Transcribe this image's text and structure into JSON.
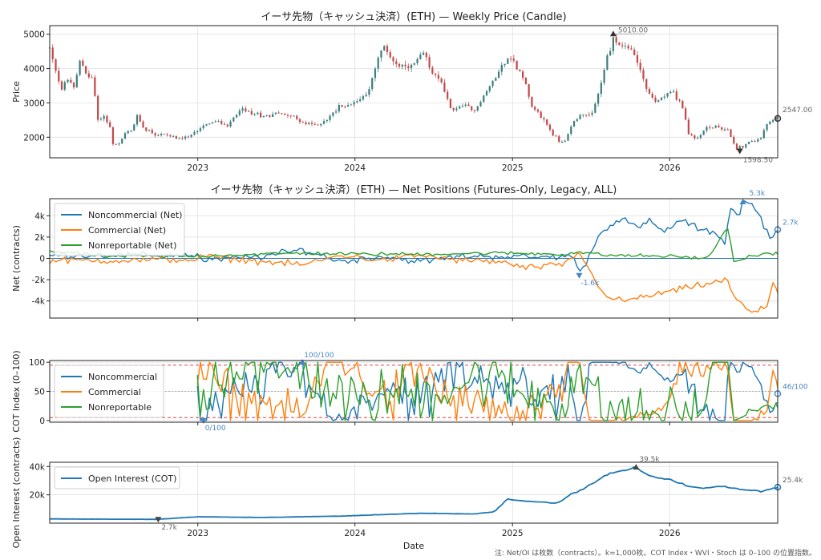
{
  "footnote": "注: Net/OI は枚数（contracts）。k=1,000枚。COT Index・WVI・Stoch は 0–100 の位置指数。",
  "colors": {
    "noncommercial": "#1f77b4",
    "commercial": "#ff7f0e",
    "nonreportable": "#2ca02c",
    "oi": "#1f77b4",
    "up": "#3f7f7f",
    "down": "#c24a4a",
    "threshold": "#d62728",
    "ann_blue": "#4a86c5",
    "ann_gray": "#666666"
  },
  "chart_data": [
    {
      "id": "price",
      "type": "candlestick",
      "title": "イーサ先物（キャッシュ決済）(ETH) — Weekly Price (Candle)",
      "ylabel": "Price",
      "ylim": [
        1400,
        5250
      ],
      "yticks": [
        2000,
        3000,
        4000,
        5000
      ],
      "xlim": [
        "2022-01-22",
        "2026-09-09"
      ],
      "xticks": [
        "2023",
        "2024",
        "2025",
        "2026"
      ],
      "grid": true,
      "anchors_close": [
        [
          "2022-01-22",
          4600
        ],
        [
          "2022-02-05",
          3900
        ],
        [
          "2022-02-19",
          3400
        ],
        [
          "2022-03-05",
          3700
        ],
        [
          "2022-03-19",
          3400
        ],
        [
          "2022-04-02",
          4200
        ],
        [
          "2022-04-16",
          3900
        ],
        [
          "2022-04-30",
          3700
        ],
        [
          "2022-05-07",
          3200
        ],
        [
          "2022-05-14",
          2500
        ],
        [
          "2022-05-28",
          2600
        ],
        [
          "2022-06-11",
          2300
        ],
        [
          "2022-06-18",
          1800
        ],
        [
          "2022-07-02",
          1800
        ],
        [
          "2022-07-16",
          2100
        ],
        [
          "2022-07-30",
          2200
        ],
        [
          "2022-08-13",
          2600
        ],
        [
          "2022-08-27",
          2300
        ],
        [
          "2022-09-10",
          2200
        ],
        [
          "2022-09-24",
          2050
        ],
        [
          "2022-10-15",
          2100
        ],
        [
          "2022-11-05",
          2000
        ],
        [
          "2022-11-19",
          1950
        ],
        [
          "2022-12-10",
          2000
        ],
        [
          "2022-12-31",
          2200
        ],
        [
          "2023-01-21",
          2400
        ],
        [
          "2023-02-18",
          2450
        ],
        [
          "2023-03-11",
          2300
        ],
        [
          "2023-04-08",
          2800
        ],
        [
          "2023-05-06",
          2700
        ],
        [
          "2023-06-03",
          2600
        ],
        [
          "2023-07-01",
          2700
        ],
        [
          "2023-08-05",
          2650
        ],
        [
          "2023-09-02",
          2400
        ],
        [
          "2023-10-07",
          2350
        ],
        [
          "2023-11-04",
          2600
        ],
        [
          "2023-11-25",
          2900
        ],
        [
          "2023-12-16",
          2950
        ],
        [
          "2024-01-13",
          3100
        ],
        [
          "2024-02-03",
          3400
        ],
        [
          "2024-02-24",
          4300
        ],
        [
          "2024-03-09",
          4600
        ],
        [
          "2024-03-30",
          4250
        ],
        [
          "2024-04-20",
          4000
        ],
        [
          "2024-05-18",
          4100
        ],
        [
          "2024-06-08",
          4400
        ],
        [
          "2024-06-29",
          3900
        ],
        [
          "2024-07-20",
          3600
        ],
        [
          "2024-08-10",
          2800
        ],
        [
          "2024-09-07",
          2900
        ],
        [
          "2024-10-05",
          2800
        ],
        [
          "2024-10-26",
          3200
        ],
        [
          "2024-11-16",
          3600
        ],
        [
          "2024-12-07",
          4100
        ],
        [
          "2024-12-28",
          4300
        ],
        [
          "2025-01-25",
          3800
        ],
        [
          "2025-02-15",
          2900
        ],
        [
          "2025-03-15",
          2500
        ],
        [
          "2025-04-05",
          2100
        ],
        [
          "2025-04-19",
          1850
        ],
        [
          "2025-05-03",
          1900
        ],
        [
          "2025-05-24",
          2500
        ],
        [
          "2025-06-14",
          2700
        ],
        [
          "2025-07-05",
          2650
        ],
        [
          "2025-07-26",
          3600
        ],
        [
          "2025-08-09",
          4300
        ],
        [
          "2025-08-23",
          4800
        ],
        [
          "2025-09-06",
          4700
        ],
        [
          "2025-09-27",
          4600
        ],
        [
          "2025-10-11",
          4400
        ],
        [
          "2025-10-25",
          4000
        ],
        [
          "2025-11-08",
          3400
        ],
        [
          "2025-11-29",
          3000
        ],
        [
          "2025-12-20",
          3200
        ],
        [
          "2026-01-10",
          3300
        ],
        [
          "2026-01-31",
          2900
        ],
        [
          "2026-02-14",
          2100
        ],
        [
          "2026-03-07",
          1950
        ],
        [
          "2026-03-28",
          2300
        ],
        [
          "2026-04-18",
          2300
        ],
        [
          "2026-05-16",
          2200
        ],
        [
          "2026-06-06",
          1650
        ],
        [
          "2026-06-27",
          1800
        ],
        [
          "2026-07-18",
          1900
        ],
        [
          "2026-08-01",
          2000
        ],
        [
          "2026-08-15",
          2400
        ],
        [
          "2026-08-29",
          2500
        ],
        [
          "2026-09-09",
          2547
        ]
      ],
      "annotations": [
        {
          "label": "5010.00",
          "date": "2025-08-23",
          "value": 5010,
          "marker": "up"
        },
        {
          "label": "1598.50",
          "date": "2026-06-13",
          "value": 1598.5,
          "marker": "down"
        },
        {
          "label": "2547.00",
          "date": "2026-09-09",
          "value": 2547,
          "marker": "last"
        }
      ]
    },
    {
      "id": "net",
      "type": "line",
      "title": "イーサ先物（キャッシュ決済）(ETH) — Net Positions (Futures-Only, Legacy, ALL)",
      "ylabel": "Net (contracts)",
      "ylim": [
        -5600,
        5600
      ],
      "yticks": [
        -4000,
        -2000,
        0,
        2000,
        4000
      ],
      "ytick_labels": [
        "-4k",
        "-2k",
        "0",
        "2k",
        "4k"
      ],
      "grid": true,
      "legend": "top-left",
      "series": [
        {
          "name": "Noncommercial (Net)",
          "key": "noncommercial",
          "anchors": [
            [
              "2022-01-22",
              300
            ],
            [
              "2022-06-01",
              300
            ],
            [
              "2022-12-31",
              300
            ],
            [
              "2023-01-10",
              -200
            ],
            [
              "2023-06-01",
              200
            ],
            [
              "2023-09-01",
              800
            ],
            [
              "2023-12-01",
              -300
            ],
            [
              "2024-03-01",
              200
            ],
            [
              "2024-06-01",
              -300
            ],
            [
              "2024-09-01",
              200
            ],
            [
              "2024-12-01",
              200
            ],
            [
              "2025-03-01",
              100
            ],
            [
              "2025-05-25",
              200
            ],
            [
              "2025-06-05",
              -1600
            ],
            [
              "2025-06-25",
              0
            ],
            [
              "2025-07-15",
              1800
            ],
            [
              "2025-08-15",
              3200
            ],
            [
              "2025-09-15",
              3800
            ],
            [
              "2025-10-15",
              2800
            ],
            [
              "2025-11-15",
              3500
            ],
            [
              "2025-12-15",
              2500
            ],
            [
              "2026-02-01",
              3600
            ],
            [
              "2026-03-15",
              2600
            ],
            [
              "2026-04-15",
              2500
            ],
            [
              "2026-05-10",
              1500
            ],
            [
              "2026-05-22",
              4800
            ],
            [
              "2026-06-10",
              4000
            ],
            [
              "2026-06-20",
              5300
            ],
            [
              "2026-07-15",
              5000
            ],
            [
              "2026-08-10",
              3000
            ],
            [
              "2026-08-25",
              1700
            ],
            [
              "2026-09-09",
              2700
            ]
          ]
        },
        {
          "name": "Commercial (Net)",
          "key": "commercial",
          "anchors": [
            [
              "2022-01-22",
              -200
            ],
            [
              "2022-06-01",
              -200
            ],
            [
              "2022-12-31",
              -100
            ],
            [
              "2023-01-10",
              200
            ],
            [
              "2023-06-01",
              -300
            ],
            [
              "2023-09-01",
              -600
            ],
            [
              "2023-12-01",
              300
            ],
            [
              "2024-03-01",
              -200
            ],
            [
              "2024-06-01",
              300
            ],
            [
              "2024-09-01",
              -200
            ],
            [
              "2024-12-01",
              -300
            ],
            [
              "2025-02-01",
              -900
            ],
            [
              "2025-05-01",
              -600
            ],
            [
              "2025-06-05",
              600
            ],
            [
              "2025-07-10",
              -2000
            ],
            [
              "2025-08-15",
              -3800
            ],
            [
              "2025-09-15",
              -4000
            ],
            [
              "2025-11-15",
              -3500
            ],
            [
              "2026-01-15",
              -3000
            ],
            [
              "2026-03-15",
              -2500
            ],
            [
              "2026-05-15",
              -2000
            ],
            [
              "2026-06-01",
              -3800
            ],
            [
              "2026-07-15",
              -5200
            ],
            [
              "2026-08-15",
              -4500
            ],
            [
              "2026-08-30",
              -2000
            ],
            [
              "2026-09-09",
              -3200
            ]
          ]
        },
        {
          "name": "Nonreportable (Net)",
          "key": "nonreportable",
          "anchors": [
            [
              "2022-01-22",
              700
            ],
            [
              "2022-06-01",
              200
            ],
            [
              "2022-12-31",
              200
            ],
            [
              "2023-03-01",
              300
            ],
            [
              "2023-09-01",
              500
            ],
            [
              "2024-01-01",
              400
            ],
            [
              "2024-06-01",
              400
            ],
            [
              "2024-12-01",
              500
            ],
            [
              "2025-05-01",
              400
            ],
            [
              "2025-06-05",
              600
            ],
            [
              "2025-08-01",
              300
            ],
            [
              "2026-01-01",
              200
            ],
            [
              "2026-04-01",
              0
            ],
            [
              "2026-05-15",
              3000
            ],
            [
              "2026-06-01",
              -500
            ],
            [
              "2026-07-01",
              200
            ],
            [
              "2026-09-09",
              500
            ]
          ]
        }
      ],
      "annotations": [
        {
          "label": "5.3k",
          "date": "2026-06-20",
          "value": 5300,
          "marker": "up"
        },
        {
          "label": "-1.6k",
          "date": "2025-06-05",
          "value": -1600,
          "marker": "down"
        },
        {
          "label": "2.7k",
          "date": "2026-09-09",
          "value": 2700,
          "marker": "last"
        }
      ]
    },
    {
      "id": "cot",
      "type": "line",
      "ylabel": "COT Index (0–100)",
      "ylim": [
        -3,
        103
      ],
      "yticks": [
        0,
        50,
        100
      ],
      "thresholds": [
        5,
        50,
        95
      ],
      "xstart": "2022-12-31",
      "grid": true,
      "legend": "top-left",
      "series": [
        {
          "name": "Noncommercial",
          "key": "noncommercial"
        },
        {
          "name": "Commercial",
          "key": "commercial"
        },
        {
          "name": "Nonreportable",
          "key": "nonreportable"
        }
      ],
      "annotations": [
        {
          "label": "100/100",
          "date": "2023-09-01",
          "value": 100,
          "marker": "up"
        },
        {
          "label": "0/100",
          "date": "2023-01-14",
          "value": 0,
          "marker": "down"
        },
        {
          "label": "46/100",
          "date": "2026-09-09",
          "value": 46,
          "marker": "last"
        }
      ]
    },
    {
      "id": "oi",
      "type": "line",
      "xlabel": "Date",
      "ylabel": "Open Interest (contracts)",
      "ylim": [
        0,
        43000
      ],
      "yticks": [
        20000,
        40000
      ],
      "ytick_labels": [
        "20k",
        "40k"
      ],
      "grid": true,
      "legend": "top-left",
      "series": [
        {
          "name": "Open Interest (COT)",
          "key": "oi",
          "anchors": [
            [
              "2022-01-22",
              3000
            ],
            [
              "2022-06-01",
              2800
            ],
            [
              "2022-10-01",
              2700
            ],
            [
              "2022-12-31",
              4500
            ],
            [
              "2023-06-01",
              4000
            ],
            [
              "2023-12-01",
              5000
            ],
            [
              "2024-06-01",
              7000
            ],
            [
              "2024-10-01",
              6500
            ],
            [
              "2024-11-20",
              8000
            ],
            [
              "2024-12-20",
              17000
            ],
            [
              "2025-01-20",
              16000
            ],
            [
              "2025-03-01",
              15000
            ],
            [
              "2025-04-15",
              14000
            ],
            [
              "2025-05-20",
              21000
            ],
            [
              "2025-06-15",
              24000
            ],
            [
              "2025-07-15",
              30000
            ],
            [
              "2025-08-15",
              35000
            ],
            [
              "2025-09-15",
              37000
            ],
            [
              "2025-10-15",
              39500
            ],
            [
              "2025-11-15",
              33000
            ],
            [
              "2026-01-01",
              31000
            ],
            [
              "2026-02-15",
              26000
            ],
            [
              "2026-03-15",
              24500
            ],
            [
              "2026-05-01",
              26000
            ],
            [
              "2026-06-15",
              24000
            ],
            [
              "2026-08-01",
              22500
            ],
            [
              "2026-09-09",
              25400
            ]
          ]
        }
      ],
      "annotations": [
        {
          "label": "39.5k",
          "date": "2025-10-15",
          "value": 39500,
          "marker": "up"
        },
        {
          "label": "2.7k",
          "date": "2022-10-01",
          "value": 2700,
          "marker": "down"
        },
        {
          "label": "25.4k",
          "date": "2026-09-09",
          "value": 25400,
          "marker": "last"
        }
      ]
    }
  ]
}
